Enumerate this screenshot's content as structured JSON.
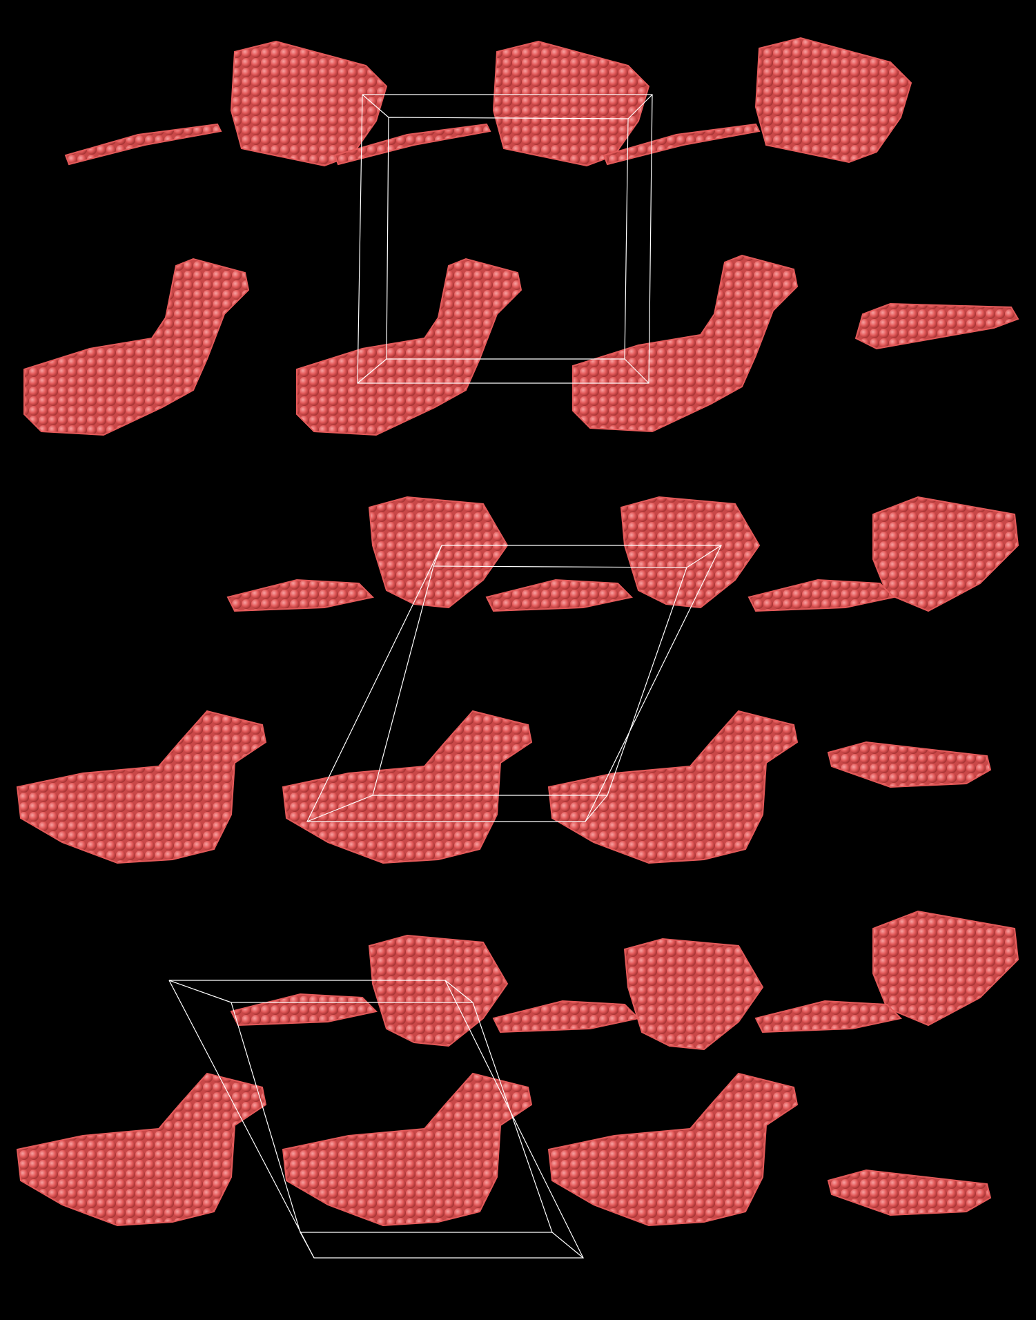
{
  "scene": {
    "description_role": "molecular-structure-render",
    "background_color": "#000000",
    "atom_color": "#e35a5a",
    "atom_highlight_color": "#f59a9a",
    "atom_shadow_color": "#b23b3b",
    "cell_line_color": "#ffffff",
    "panels": [
      {
        "name": "panel-top-orthogonal-cell",
        "cell_type": "orthogonal"
      },
      {
        "name": "panel-middle-monoclinic-cell",
        "cell_type": "monoclinic"
      },
      {
        "name": "panel-bottom-triclinic-cell",
        "cell_type": "triclinic"
      }
    ]
  }
}
